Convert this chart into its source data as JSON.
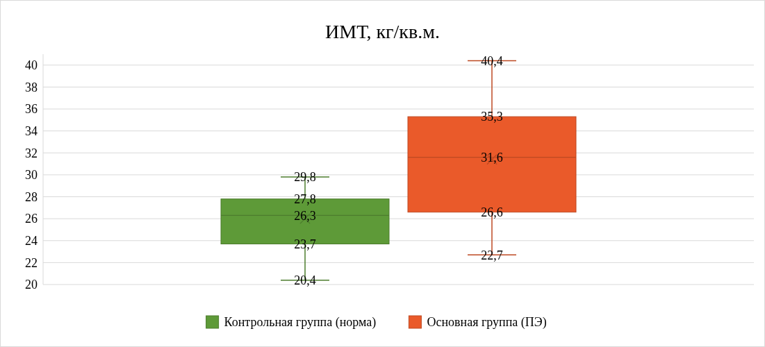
{
  "chart_data": {
    "type": "box",
    "title": "ИМТ, кг/кв.м.",
    "categories": [
      null
    ],
    "series": [
      {
        "name": "Контрольная группа (норма)",
        "color": "#5e9a38",
        "boxes": [
          {
            "low": 20.4,
            "q1": 23.7,
            "median": 26.3,
            "q3": 27.8,
            "high": 29.8,
            "mean": 26.0
          }
        ]
      },
      {
        "name": "Основная группа (ПЭ)",
        "color": "#ea5a2a",
        "boxes": [
          {
            "low": 22.7,
            "q1": 26.6,
            "median": 31.6,
            "q3": 35.3,
            "high": 40.4,
            "mean": 31.4
          }
        ]
      }
    ],
    "annotations": [
      {
        "text": "20,4",
        "y": 20.4
      },
      {
        "text": "23,7",
        "y": 23.7
      },
      {
        "text": "26,3",
        "y": 26.3
      },
      {
        "text": "27,8",
        "y": 27.8
      },
      {
        "text": "29,8",
        "y": 29.8
      },
      {
        "text": "22,7",
        "y": 22.7
      },
      {
        "text": "26,6",
        "y": 26.6
      },
      {
        "text": "31,6",
        "y": 31.6
      },
      {
        "text": "35,3",
        "y": 35.3
      },
      {
        "text": "40,4",
        "y": 40.4
      }
    ],
    "ylim": [
      20,
      41
    ],
    "yticks": [
      20,
      22,
      24,
      26,
      28,
      30,
      32,
      34,
      36,
      38,
      40
    ],
    "grid": "y",
    "legend": "bottom",
    "marker": "cross"
  }
}
